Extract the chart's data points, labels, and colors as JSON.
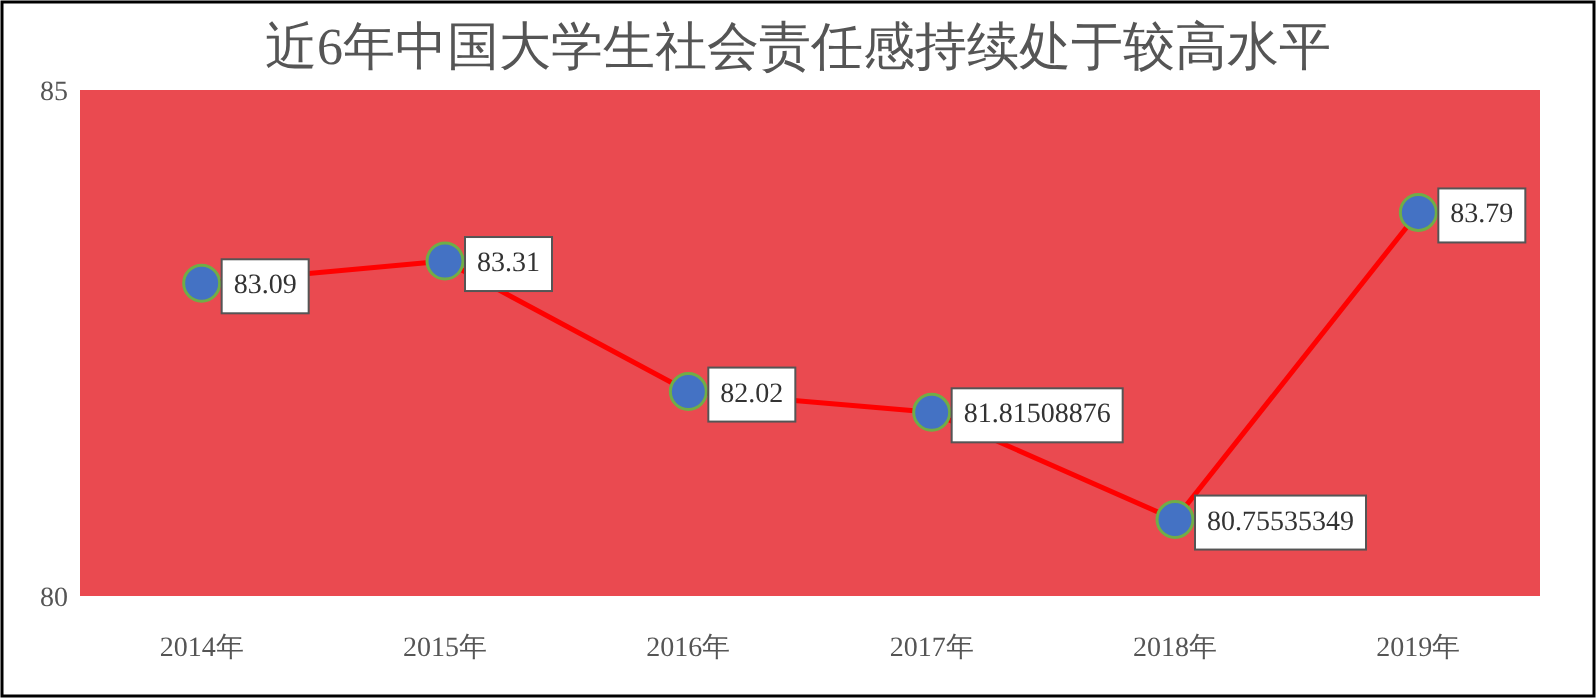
{
  "chart_data": {
    "type": "line",
    "title": "近6年中国大学生社会责任感持续处于较高水平",
    "categories": [
      "2014年",
      "2015年",
      "2016年",
      "2017年",
      "2018年",
      "2019年"
    ],
    "series": [
      {
        "color": "#ff0000",
        "values": [
          83.09,
          83.31,
          82.02,
          81.81508876,
          80.75535349,
          83.79
        ]
      }
    ],
    "ylim": [
      80,
      85
    ],
    "yticks": [
      80,
      85
    ],
    "data_labels": true,
    "marker": "circle"
  }
}
